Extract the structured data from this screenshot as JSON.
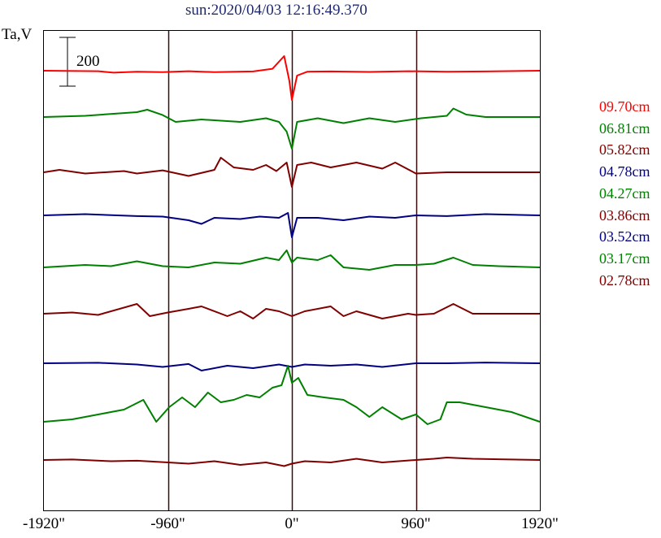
{
  "title": "sun:2020/04/03 12:16:49.370",
  "y_axis_label": "Ta,V",
  "scale_bar_label": "200",
  "chart_data": {
    "type": "line",
    "title": "sun:2020/04/03 12:16:49.370",
    "xlabel": "",
    "ylabel": "Ta,V",
    "xlim": [
      -1920,
      1920
    ],
    "x_tick_labels": [
      "-1920\"",
      "-960\"",
      "0\"",
      "960\"",
      "1920\""
    ],
    "x_ticks": [
      -1920,
      -960,
      0,
      960,
      1920
    ],
    "vertical_lines": [
      -960,
      0,
      960
    ],
    "scale_bar": 200,
    "grid": false,
    "legend_position": "right",
    "series": [
      {
        "name": "09.70cm",
        "color": "#ff0000",
        "baseline": 0,
        "points": [
          [
            -1920,
            0
          ],
          [
            -1500,
            -2
          ],
          [
            -1380,
            -8
          ],
          [
            -1200,
            -4
          ],
          [
            -1000,
            -6
          ],
          [
            -800,
            -2
          ],
          [
            -600,
            -6
          ],
          [
            -300,
            -3
          ],
          [
            -150,
            8
          ],
          [
            -60,
            60
          ],
          [
            -20,
            -40
          ],
          [
            0,
            -120
          ],
          [
            40,
            -20
          ],
          [
            120,
            -4
          ],
          [
            300,
            -3
          ],
          [
            600,
            -5
          ],
          [
            900,
            -2
          ],
          [
            1200,
            -4
          ],
          [
            1500,
            -3
          ],
          [
            1920,
            0
          ]
        ]
      },
      {
        "name": "06.81cm",
        "color": "#008000",
        "baseline": 0,
        "points": [
          [
            -1920,
            0
          ],
          [
            -1600,
            5
          ],
          [
            -1200,
            20
          ],
          [
            -1120,
            30
          ],
          [
            -1000,
            8
          ],
          [
            -900,
            -20
          ],
          [
            -700,
            -10
          ],
          [
            -400,
            -20
          ],
          [
            -200,
            -5
          ],
          [
            -100,
            -20
          ],
          [
            -40,
            -60
          ],
          [
            0,
            -130
          ],
          [
            40,
            -20
          ],
          [
            200,
            -5
          ],
          [
            400,
            -25
          ],
          [
            600,
            -5
          ],
          [
            800,
            -20
          ],
          [
            1000,
            -5
          ],
          [
            1200,
            5
          ],
          [
            1250,
            35
          ],
          [
            1350,
            10
          ],
          [
            1500,
            0
          ],
          [
            1920,
            0
          ]
        ]
      },
      {
        "name": "05.82cm",
        "color": "#800000",
        "baseline": 0,
        "points": [
          [
            -1920,
            0
          ],
          [
            -1800,
            10
          ],
          [
            -1600,
            -5
          ],
          [
            -1300,
            5
          ],
          [
            -1200,
            -5
          ],
          [
            -1000,
            8
          ],
          [
            -800,
            -15
          ],
          [
            -600,
            10
          ],
          [
            -550,
            60
          ],
          [
            -450,
            20
          ],
          [
            -300,
            10
          ],
          [
            -200,
            30
          ],
          [
            -120,
            5
          ],
          [
            -40,
            40
          ],
          [
            0,
            -60
          ],
          [
            40,
            30
          ],
          [
            150,
            40
          ],
          [
            300,
            20
          ],
          [
            500,
            40
          ],
          [
            700,
            15
          ],
          [
            800,
            40
          ],
          [
            960,
            -5
          ],
          [
            1200,
            0
          ],
          [
            1920,
            0
          ]
        ]
      },
      {
        "name": "04.78cm",
        "color": "#000080",
        "baseline": 0,
        "points": [
          [
            -1920,
            0
          ],
          [
            -1600,
            5
          ],
          [
            -1200,
            -3
          ],
          [
            -1000,
            -5
          ],
          [
            -800,
            -20
          ],
          [
            -700,
            -35
          ],
          [
            -600,
            -10
          ],
          [
            -400,
            -15
          ],
          [
            -250,
            -5
          ],
          [
            -100,
            -10
          ],
          [
            -30,
            10
          ],
          [
            0,
            -90
          ],
          [
            40,
            -10
          ],
          [
            200,
            -10
          ],
          [
            400,
            -20
          ],
          [
            600,
            -5
          ],
          [
            800,
            -10
          ],
          [
            960,
            0
          ],
          [
            1200,
            -3
          ],
          [
            1500,
            5
          ],
          [
            1920,
            0
          ]
        ]
      },
      {
        "name": "04.27cm",
        "color": "#008000",
        "baseline": 0,
        "points": [
          [
            -1920,
            0
          ],
          [
            -1600,
            10
          ],
          [
            -1400,
            5
          ],
          [
            -1200,
            25
          ],
          [
            -1000,
            5
          ],
          [
            -800,
            0
          ],
          [
            -600,
            20
          ],
          [
            -400,
            15
          ],
          [
            -200,
            40
          ],
          [
            -100,
            30
          ],
          [
            -40,
            70
          ],
          [
            0,
            20
          ],
          [
            40,
            40
          ],
          [
            200,
            30
          ],
          [
            300,
            50
          ],
          [
            400,
            0
          ],
          [
            600,
            -10
          ],
          [
            800,
            10
          ],
          [
            960,
            10
          ],
          [
            1100,
            15
          ],
          [
            1250,
            40
          ],
          [
            1400,
            10
          ],
          [
            1600,
            5
          ],
          [
            1920,
            0
          ]
        ]
      },
      {
        "name": "03.86cm",
        "color": "#800000",
        "baseline": 0,
        "points": [
          [
            -1920,
            0
          ],
          [
            -1700,
            5
          ],
          [
            -1500,
            -5
          ],
          [
            -1200,
            40
          ],
          [
            -1100,
            -10
          ],
          [
            -960,
            5
          ],
          [
            -800,
            20
          ],
          [
            -700,
            30
          ],
          [
            -500,
            -10
          ],
          [
            -400,
            10
          ],
          [
            -300,
            -20
          ],
          [
            -200,
            20
          ],
          [
            -100,
            10
          ],
          [
            0,
            -10
          ],
          [
            100,
            10
          ],
          [
            300,
            30
          ],
          [
            400,
            -10
          ],
          [
            500,
            10
          ],
          [
            700,
            -20
          ],
          [
            900,
            0
          ],
          [
            960,
            -5
          ],
          [
            1100,
            0
          ],
          [
            1250,
            40
          ],
          [
            1400,
            0
          ],
          [
            1920,
            0
          ]
        ]
      },
      {
        "name": "03.52cm",
        "color": "#000080",
        "baseline": 0,
        "points": [
          [
            -1920,
            0
          ],
          [
            -1500,
            2
          ],
          [
            -1200,
            -5
          ],
          [
            -1000,
            -15
          ],
          [
            -800,
            -3
          ],
          [
            -700,
            -30
          ],
          [
            -500,
            -10
          ],
          [
            -300,
            -20
          ],
          [
            -100,
            -5
          ],
          [
            0,
            -15
          ],
          [
            100,
            -5
          ],
          [
            300,
            -10
          ],
          [
            500,
            -5
          ],
          [
            700,
            -15
          ],
          [
            960,
            0
          ],
          [
            1200,
            0
          ],
          [
            1500,
            3
          ],
          [
            1920,
            0
          ]
        ]
      },
      {
        "name": "03.17cm",
        "color": "#008000",
        "baseline": 0,
        "points": [
          [
            -1920,
            0
          ],
          [
            -1700,
            10
          ],
          [
            -1500,
            30
          ],
          [
            -1300,
            50
          ],
          [
            -1150,
            90
          ],
          [
            -1050,
            0
          ],
          [
            -950,
            60
          ],
          [
            -850,
            100
          ],
          [
            -750,
            60
          ],
          [
            -650,
            120
          ],
          [
            -550,
            80
          ],
          [
            -450,
            90
          ],
          [
            -350,
            110
          ],
          [
            -250,
            100
          ],
          [
            -150,
            140
          ],
          [
            -80,
            150
          ],
          [
            -30,
            230
          ],
          [
            0,
            160
          ],
          [
            50,
            180
          ],
          [
            120,
            110
          ],
          [
            250,
            100
          ],
          [
            400,
            90
          ],
          [
            500,
            60
          ],
          [
            600,
            20
          ],
          [
            700,
            60
          ],
          [
            850,
            10
          ],
          [
            960,
            30
          ],
          [
            1050,
            -10
          ],
          [
            1150,
            10
          ],
          [
            1200,
            80
          ],
          [
            1300,
            80
          ],
          [
            1500,
            60
          ],
          [
            1700,
            40
          ],
          [
            1920,
            0
          ]
        ]
      },
      {
        "name": "02.78cm",
        "color": "#800000",
        "baseline": 0,
        "points": [
          [
            -1920,
            0
          ],
          [
            -1700,
            2
          ],
          [
            -1400,
            -5
          ],
          [
            -1200,
            -3
          ],
          [
            -960,
            -10
          ],
          [
            -800,
            -15
          ],
          [
            -600,
            -5
          ],
          [
            -400,
            -20
          ],
          [
            -200,
            -10
          ],
          [
            -60,
            -25
          ],
          [
            0,
            -15
          ],
          [
            100,
            -5
          ],
          [
            300,
            -10
          ],
          [
            500,
            5
          ],
          [
            700,
            -10
          ],
          [
            960,
            0
          ],
          [
            1100,
            5
          ],
          [
            1200,
            10
          ],
          [
            1400,
            5
          ],
          [
            1600,
            3
          ],
          [
            1920,
            0
          ]
        ]
      }
    ]
  }
}
